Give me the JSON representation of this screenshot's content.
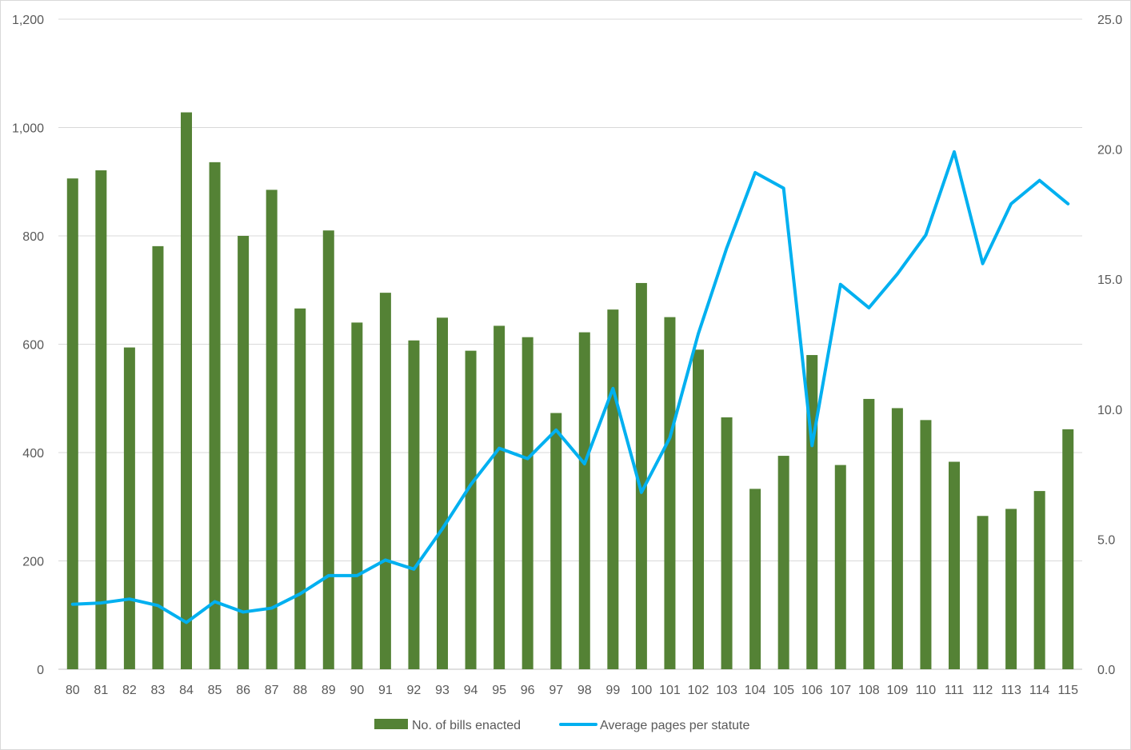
{
  "chart_data": {
    "type": "bar",
    "categories": [
      "80",
      "81",
      "82",
      "83",
      "84",
      "85",
      "86",
      "87",
      "88",
      "89",
      "90",
      "91",
      "92",
      "93",
      "94",
      "95",
      "96",
      "97",
      "98",
      "99",
      "100",
      "101",
      "102",
      "103",
      "104",
      "105",
      "106",
      "107",
      "108",
      "109",
      "110",
      "111",
      "112",
      "113",
      "114",
      "115"
    ],
    "series": [
      {
        "name": "No. of bills enacted",
        "type": "bar",
        "axis": "left",
        "color": "#548235",
        "values": [
          906,
          921,
          594,
          781,
          1028,
          936,
          800,
          885,
          666,
          810,
          640,
          695,
          607,
          649,
          588,
          634,
          613,
          473,
          622,
          664,
          713,
          650,
          590,
          465,
          333,
          394,
          580,
          377,
          499,
          482,
          460,
          383,
          283,
          296,
          329,
          443
        ]
      },
      {
        "name": "Average pages per statute",
        "type": "line",
        "axis": "right",
        "color": "#00b0f0",
        "values": [
          2.5,
          2.55,
          2.7,
          2.45,
          1.8,
          2.6,
          2.2,
          2.35,
          2.9,
          3.6,
          3.6,
          4.2,
          3.85,
          5.4,
          7.1,
          8.5,
          8.1,
          9.2,
          7.9,
          10.8,
          6.8,
          8.9,
          12.9,
          16.2,
          19.1,
          18.5,
          8.6,
          14.8,
          13.9,
          15.2,
          16.7,
          19.9,
          15.6,
          17.9,
          18.8,
          17.9
        ]
      }
    ],
    "y_left": {
      "min": 0,
      "max": 1200,
      "ticks": [
        "0",
        "200",
        "400",
        "600",
        "800",
        "1,000",
        "1,200"
      ]
    },
    "y_right": {
      "min": 0,
      "max": 25,
      "ticks": [
        "0.0",
        "5.0",
        "10.0",
        "15.0",
        "20.0",
        "25.0"
      ]
    },
    "grid": true,
    "legend": {
      "placement": "bottom"
    }
  }
}
